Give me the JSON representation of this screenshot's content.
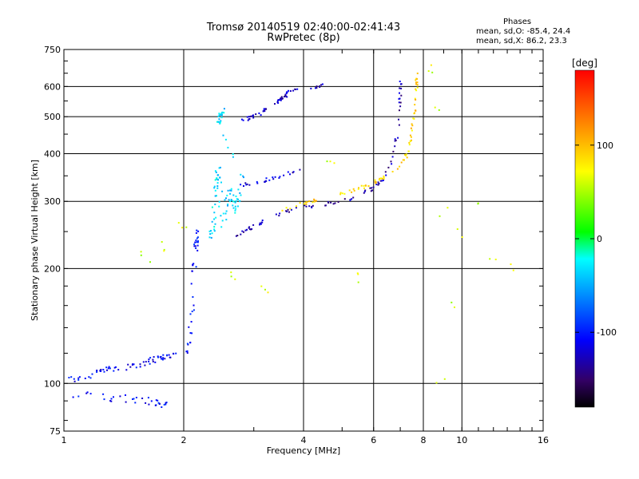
{
  "chart_data": {
    "type": "scatter",
    "title": "Tromsø 20140519 02:40:00-02:41:43",
    "subtitle": "RwPretec (8p)",
    "stats": {
      "heading": "Phases",
      "o_mode": "mean, sd,O: -85.4, 24.4",
      "x_mode": "mean, sd,X:  86.2, 23.3"
    },
    "xlabel": "Frequency [MHz]",
    "ylabel": "Stationary phase Virtual Height [km]",
    "x_scale": "log",
    "y_scale": "log",
    "xlim": [
      1,
      16
    ],
    "ylim": [
      75,
      750
    ],
    "x_ticks": [
      1,
      2,
      4,
      6,
      8,
      10,
      16
    ],
    "y_ticks": [
      75,
      100,
      200,
      300,
      400,
      500,
      600,
      750
    ],
    "grid": true,
    "colorbar": {
      "label": "[deg]",
      "range": [
        -180,
        180
      ],
      "ticks": [
        -100,
        0,
        100
      ]
    },
    "traces": [
      {
        "name_hint": "low E trace",
        "phase": -110,
        "spread": 1.5,
        "n": 70,
        "points": [
          [
            1.0,
            105
          ],
          [
            1.1,
            102
          ],
          [
            1.25,
            108
          ],
          [
            1.4,
            110
          ],
          [
            1.55,
            112
          ],
          [
            1.7,
            116
          ],
          [
            1.85,
            118
          ],
          [
            2.0,
            122
          ],
          [
            2.1,
            128
          ]
        ]
      },
      {
        "name_hint": "bottom band",
        "phase": -105,
        "spread": 2.0,
        "n": 35,
        "points": [
          [
            1.05,
            93
          ],
          [
            1.3,
            92
          ],
          [
            1.5,
            91
          ],
          [
            1.7,
            90
          ],
          [
            1.8,
            88
          ]
        ]
      },
      {
        "name_hint": "vertical rise",
        "phase": -105,
        "spread": 1.2,
        "n": 35,
        "points": [
          [
            2.05,
            120
          ],
          [
            2.1,
            150
          ],
          [
            2.12,
            190
          ],
          [
            2.15,
            230
          ],
          [
            2.18,
            255
          ]
        ]
      },
      {
        "name_hint": "F cusp column",
        "phase": -35,
        "spread": 1.5,
        "n": 110,
        "points": [
          [
            2.35,
            240
          ],
          [
            2.4,
            300
          ],
          [
            2.45,
            370
          ],
          [
            2.5,
            250
          ],
          [
            2.6,
            320
          ],
          [
            2.7,
            280
          ],
          [
            2.8,
            350
          ],
          [
            2.45,
            480
          ],
          [
            2.5,
            520
          ]
        ]
      },
      {
        "name_hint": "O trace",
        "phase": -130,
        "spread": 0.8,
        "n": 90,
        "points": [
          [
            2.6,
            240
          ],
          [
            2.8,
            250
          ],
          [
            3.0,
            258
          ],
          [
            3.3,
            270
          ],
          [
            3.6,
            282
          ],
          [
            4.0,
            290
          ],
          [
            4.5,
            295
          ],
          [
            5.0,
            300
          ],
          [
            5.5,
            310
          ],
          [
            6.0,
            325
          ],
          [
            6.4,
            345
          ],
          [
            6.7,
            390
          ],
          [
            6.9,
            460
          ],
          [
            7.0,
            560
          ],
          [
            7.0,
            640
          ]
        ]
      },
      {
        "name_hint": "X trace",
        "phase": 90,
        "spread": 0.8,
        "n": 90,
        "points": [
          [
            3.4,
            280
          ],
          [
            3.8,
            292
          ],
          [
            4.2,
            300
          ],
          [
            4.8,
            310
          ],
          [
            5.4,
            322
          ],
          [
            6.0,
            335
          ],
          [
            6.5,
            350
          ],
          [
            7.0,
            370
          ],
          [
            7.3,
            400
          ],
          [
            7.5,
            450
          ],
          [
            7.6,
            520
          ],
          [
            7.7,
            600
          ],
          [
            7.7,
            650
          ]
        ]
      },
      {
        "name_hint": "upper echo",
        "phase": -125,
        "spread": 1.0,
        "n": 55,
        "points": [
          [
            2.8,
            490
          ],
          [
            3.0,
            500
          ],
          [
            3.2,
            520
          ],
          [
            3.4,
            545
          ],
          [
            3.6,
            570
          ],
          [
            3.8,
            590
          ],
          [
            4.2,
            600
          ],
          [
            4.5,
            605
          ]
        ]
      },
      {
        "name_hint": "sporadic points",
        "phase": 60,
        "spread": 4.0,
        "n": 40,
        "points": [
          [
            1.6,
            215
          ],
          [
            1.75,
            230
          ],
          [
            2.0,
            260
          ],
          [
            2.7,
            190
          ],
          [
            3.2,
            180
          ],
          [
            4.7,
            370
          ],
          [
            5.6,
            190
          ],
          [
            8.2,
            680
          ],
          [
            8.6,
            520
          ],
          [
            9.0,
            280
          ],
          [
            9.8,
            250
          ],
          [
            11.0,
            290
          ],
          [
            12.0,
            210
          ],
          [
            13.5,
            200
          ],
          [
            8.8,
            100
          ],
          [
            9.5,
            160
          ]
        ]
      },
      {
        "name_hint": "mid band",
        "phase": -120,
        "spread": 1.0,
        "n": 25,
        "points": [
          [
            2.8,
            330
          ],
          [
            3.0,
            335
          ],
          [
            3.2,
            342
          ],
          [
            3.5,
            350
          ],
          [
            3.8,
            358
          ],
          [
            4.2,
            365
          ]
        ]
      }
    ]
  }
}
